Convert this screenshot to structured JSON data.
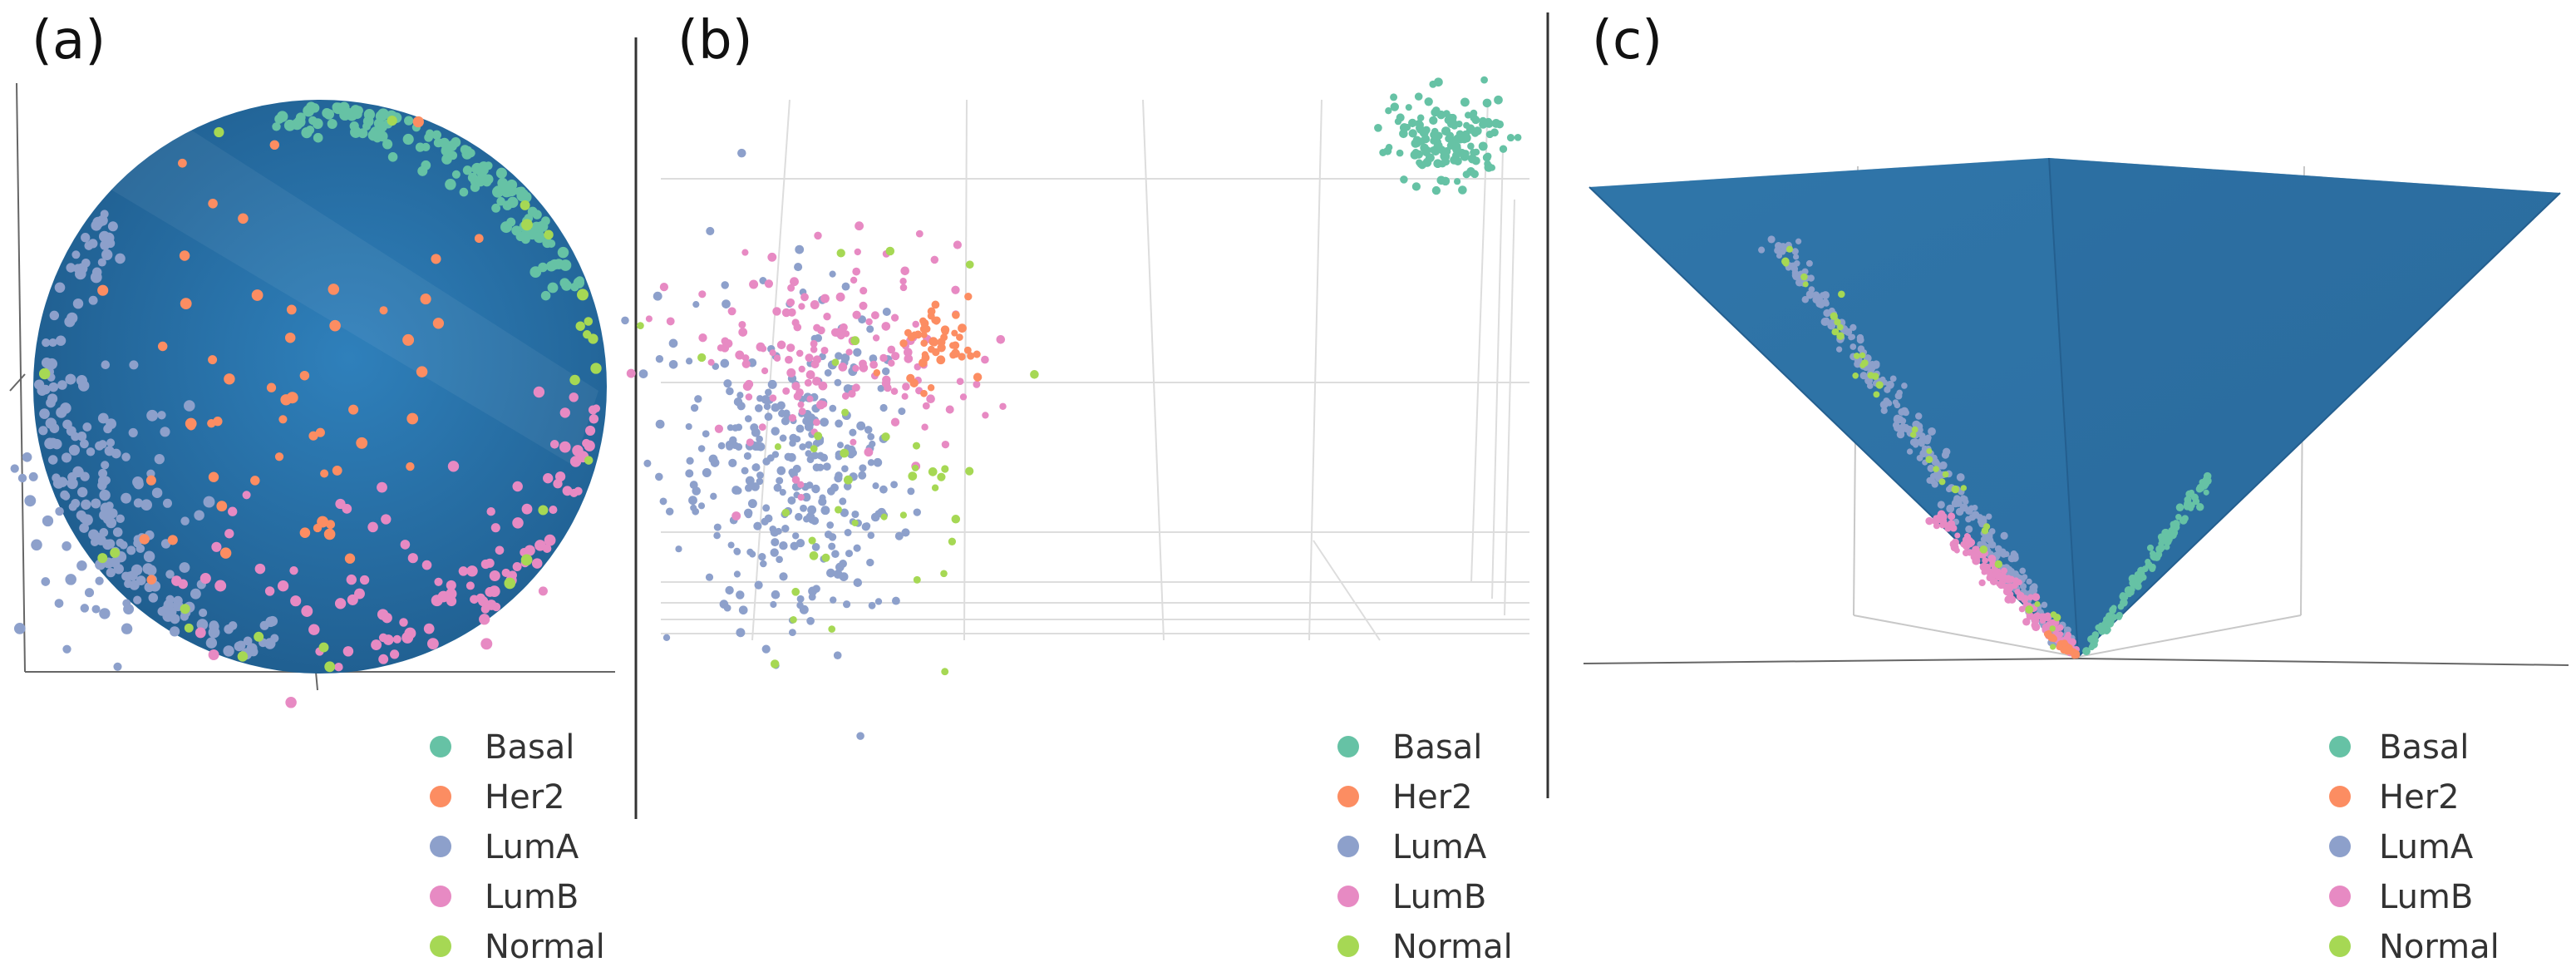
{
  "figure": {
    "colors": {
      "Basal": "#66c2a5",
      "Her2": "#fc8d62",
      "LumA": "#8da0cb",
      "LumB": "#e78ac3",
      "Normal": "#a6d854",
      "surface": "#2f74a8",
      "surface_dark": "#1f5d8e",
      "grid": "#d9d9d9",
      "axis": "#555555",
      "divider": "#333333"
    }
  },
  "chart_data": [
    {
      "type": "scatter",
      "view": "3d-sphere",
      "panel_label": "(a)",
      "title": "",
      "xlabel": "",
      "ylabel": "",
      "zlabel": "",
      "grid": false,
      "surface": "sphere",
      "legend_position": "bottom-right",
      "legend": [
        "Basal",
        "Her2",
        "LumA",
        "LumB",
        "Normal"
      ],
      "series": [
        {
          "name": "Basal",
          "region": "upper-right rim of sphere",
          "approx_count": 140
        },
        {
          "name": "Her2",
          "region": "center of sphere face",
          "approx_count": 55
        },
        {
          "name": "LumA",
          "region": "left and lower rim",
          "approx_count": 230
        },
        {
          "name": "LumB",
          "region": "lower-right rim",
          "approx_count": 110
        },
        {
          "name": "Normal",
          "region": "scattered along rim",
          "approx_count": 25
        }
      ]
    },
    {
      "type": "scatter",
      "view": "3d-scatter",
      "panel_label": "(b)",
      "title": "",
      "xlabel": "",
      "ylabel": "",
      "zlabel": "",
      "grid": true,
      "surface": "none",
      "legend_position": "bottom-right",
      "legend": [
        "Basal",
        "Her2",
        "LumA",
        "LumB",
        "Normal"
      ],
      "series": [
        {
          "name": "Basal",
          "region": "isolated cluster, upper right",
          "approx_count": 150
        },
        {
          "name": "Her2",
          "region": "upper right edge of main cluster",
          "approx_count": 50
        },
        {
          "name": "LumA",
          "region": "left and lower main cluster",
          "approx_count": 320
        },
        {
          "name": "LumB",
          "region": "upper main cluster",
          "approx_count": 160
        },
        {
          "name": "Normal",
          "region": "scattered, main cluster edges",
          "approx_count": 40
        }
      ]
    },
    {
      "type": "scatter",
      "view": "3d-cone",
      "panel_label": "(c)",
      "title": "",
      "xlabel": "",
      "ylabel": "",
      "zlabel": "",
      "grid": true,
      "surface": "inverted cone",
      "legend_position": "bottom-right",
      "legend": [
        "Basal",
        "Her2",
        "LumA",
        "LumB",
        "Normal"
      ],
      "series": [
        {
          "name": "Basal",
          "region": "right edge line of cone",
          "approx_count": 120
        },
        {
          "name": "Her2",
          "region": "near cone apex",
          "approx_count": 30
        },
        {
          "name": "LumA",
          "region": "left edge line of cone",
          "approx_count": 300
        },
        {
          "name": "LumB",
          "region": "lower left edge near apex",
          "approx_count": 150
        },
        {
          "name": "Normal",
          "region": "along left edge line",
          "approx_count": 40
        }
      ]
    }
  ]
}
